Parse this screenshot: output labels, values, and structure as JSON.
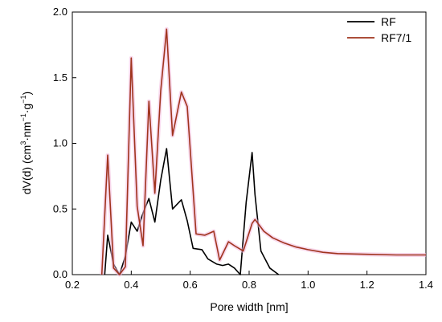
{
  "chart_data": {
    "type": "line",
    "title": "",
    "xlabel": "Pore width [nm]",
    "ylabel_parts": [
      "dV(d) (cm",
      "3",
      "·nm",
      "−1",
      "·g",
      "−1",
      ")"
    ],
    "xlim": [
      0.2,
      1.4
    ],
    "ylim": [
      0.0,
      2.0
    ],
    "xticks": [
      0.2,
      0.4,
      0.6,
      0.8,
      1.0,
      1.2,
      1.4
    ],
    "xtick_labels": [
      "0.2",
      "0.4",
      "0.6",
      "0.8",
      "1.0",
      "1.2",
      "1.4"
    ],
    "yticks": [
      0.0,
      0.5,
      1.0,
      1.5,
      2.0
    ],
    "ytick_labels": [
      "0.0",
      "0.5",
      "1.0",
      "1.5",
      "2.0"
    ],
    "grid": false,
    "legend_position": "top-right",
    "series": [
      {
        "name": "RF",
        "color": "#000000",
        "x": [
          0.31,
          0.32,
          0.34,
          0.36,
          0.38,
          0.4,
          0.42,
          0.44,
          0.46,
          0.48,
          0.5,
          0.52,
          0.54,
          0.57,
          0.59,
          0.61,
          0.64,
          0.66,
          0.69,
          0.71,
          0.73,
          0.75,
          0.77,
          0.79,
          0.81,
          0.82,
          0.84,
          0.87,
          0.9
        ],
        "y": [
          0.0,
          0.3,
          0.08,
          0.0,
          0.14,
          0.4,
          0.33,
          0.47,
          0.58,
          0.4,
          0.72,
          0.96,
          0.5,
          0.57,
          0.41,
          0.2,
          0.19,
          0.12,
          0.08,
          0.07,
          0.08,
          0.05,
          0.0,
          0.55,
          0.93,
          0.61,
          0.18,
          0.05,
          0.0
        ]
      },
      {
        "name": "RF7/1",
        "color": "#A0341E",
        "x": [
          0.3,
          0.32,
          0.34,
          0.36,
          0.38,
          0.4,
          0.42,
          0.44,
          0.46,
          0.48,
          0.5,
          0.52,
          0.54,
          0.57,
          0.59,
          0.62,
          0.65,
          0.68,
          0.7,
          0.73,
          0.75,
          0.78,
          0.81,
          0.82,
          0.85,
          0.88,
          0.92,
          0.96,
          1.0,
          1.05,
          1.1,
          1.2,
          1.3,
          1.4
        ],
        "y": [
          0.0,
          0.91,
          0.05,
          0.0,
          0.06,
          1.65,
          0.52,
          0.22,
          1.32,
          0.62,
          1.4,
          1.87,
          1.06,
          1.39,
          1.28,
          0.31,
          0.3,
          0.33,
          0.11,
          0.25,
          0.22,
          0.18,
          0.39,
          0.42,
          0.33,
          0.28,
          0.24,
          0.21,
          0.19,
          0.17,
          0.16,
          0.155,
          0.15,
          0.15
        ]
      }
    ]
  }
}
